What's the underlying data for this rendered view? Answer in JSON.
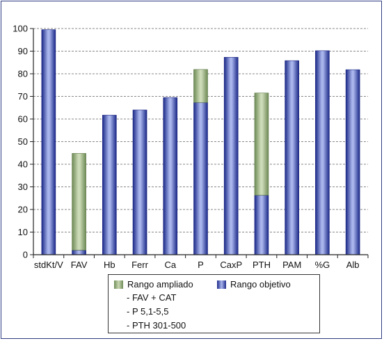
{
  "chart_data": {
    "type": "bar",
    "categories": [
      "stdKt/V",
      "FAV",
      "Hb",
      "Ferr",
      "Ca",
      "P",
      "CaxP",
      "PTH",
      "PAM",
      "%G",
      "Alb"
    ],
    "series": [
      {
        "name": "Rango objetivo",
        "values": [
          99.5,
          2,
          61.7,
          64,
          69.5,
          67.3,
          87.3,
          26.3,
          85.8,
          90.2,
          81.8
        ]
      },
      {
        "name": "Rango ampliado",
        "values": [
          0,
          42.8,
          0,
          0,
          0,
          14.6,
          0,
          45.2,
          0,
          0,
          0
        ]
      }
    ],
    "stacked": true,
    "ylim": [
      0,
      100
    ],
    "yticks": [
      "0",
      "10",
      "20",
      "30",
      "40",
      "50",
      "60",
      "70",
      "80",
      "90",
      "100"
    ],
    "grid": true,
    "legend_position": "bottom"
  },
  "legend": {
    "ampliado_label": "Rango ampliado",
    "objetivo_label": "Rango objetivo",
    "notes": [
      "- FAV + CAT",
      "- P 5,1-5,5",
      "- PTH 301-500"
    ]
  },
  "colors": {
    "objetivo": "#2b3a9a",
    "ampliado": "#8fa878",
    "frame": "#2f3b80"
  }
}
